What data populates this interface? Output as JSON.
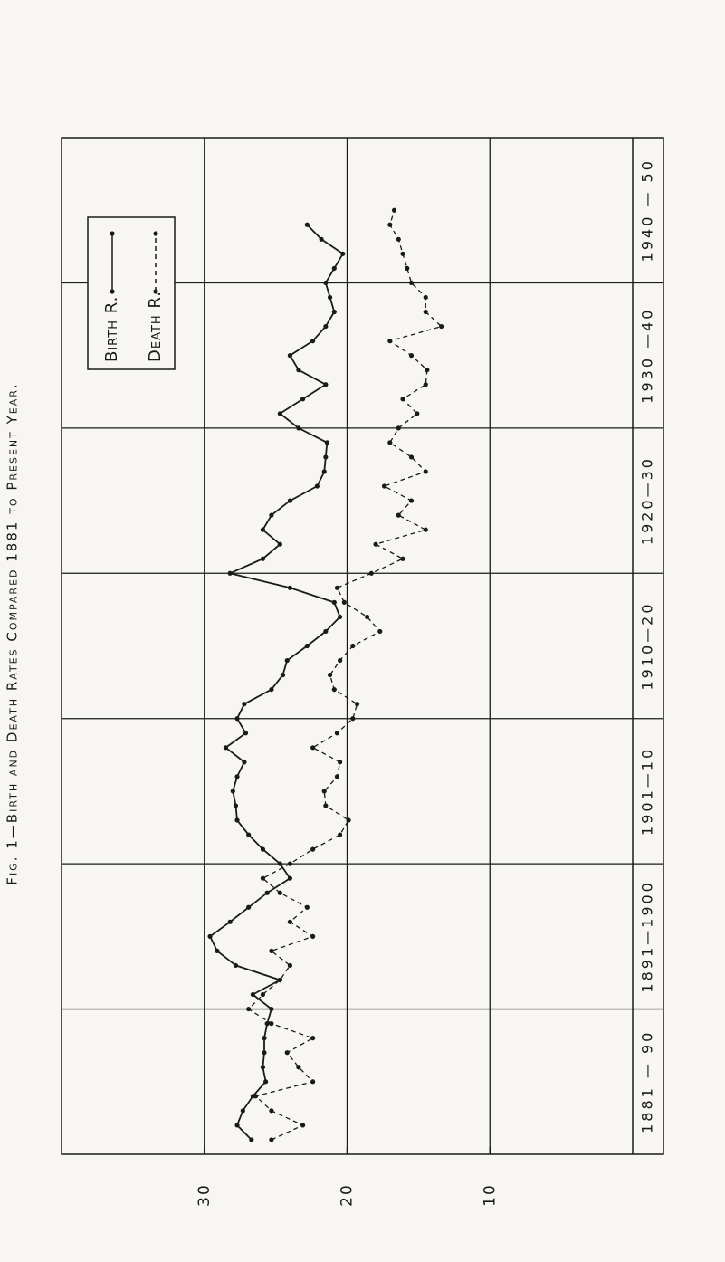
{
  "chart_data": {
    "type": "line",
    "title": "Fig. 1—Birth and Death Rates Compared 1881 to Present Year.",
    "x": [
      1881,
      1882,
      1883,
      1884,
      1885,
      1886,
      1887,
      1888,
      1889,
      1890,
      1891,
      1892,
      1893,
      1894,
      1895,
      1896,
      1897,
      1898,
      1899,
      1900,
      1901,
      1902,
      1903,
      1904,
      1905,
      1906,
      1907,
      1908,
      1909,
      1910,
      1911,
      1912,
      1913,
      1914,
      1915,
      1916,
      1917,
      1918,
      1919,
      1920,
      1921,
      1922,
      1923,
      1924,
      1925,
      1926,
      1927,
      1928,
      1929,
      1930,
      1931,
      1932,
      1933,
      1934,
      1935,
      1936,
      1937,
      1938,
      1939,
      1940,
      1941,
      1942,
      1943,
      1944,
      1945
    ],
    "series": [
      {
        "name": "Birth R.",
        "color": "#1a1a1a",
        "dashed": false,
        "values": [
          26.7,
          27.7,
          27.3,
          26.6,
          25.7,
          25.9,
          25.8,
          25.8,
          25.6,
          25.3,
          26.6,
          24.7,
          27.8,
          29.1,
          29.6,
          28.2,
          26.9,
          25.6,
          24.0,
          24.7,
          25.9,
          26.9,
          27.7,
          27.8,
          28.0,
          27.7,
          27.2,
          28.5,
          27.1,
          27.7,
          27.2,
          25.3,
          24.5,
          24.2,
          22.8,
          21.5,
          20.5,
          20.9,
          24.0,
          28.2,
          25.9,
          24.7,
          25.9,
          25.3,
          24.0,
          22.1,
          21.6,
          21.5,
          21.4,
          23.4,
          24.7,
          23.1,
          21.5,
          23.4,
          24.0,
          22.4,
          21.5,
          20.9,
          21.2,
          21.5,
          20.9,
          20.3,
          21.8,
          22.8,
          null
        ]
      },
      {
        "name": "Death R.",
        "color": "#1a1a1a",
        "dashed": true,
        "values": [
          25.3,
          23.1,
          25.3,
          26.4,
          22.4,
          23.4,
          24.2,
          22.4,
          25.3,
          26.9,
          25.9,
          24.7,
          24.0,
          25.3,
          22.4,
          24.0,
          22.8,
          24.7,
          25.9,
          24.0,
          22.4,
          20.5,
          19.9,
          21.5,
          21.6,
          20.7,
          20.5,
          22.4,
          20.7,
          19.6,
          19.3,
          20.9,
          21.2,
          20.5,
          19.6,
          17.7,
          18.6,
          20.2,
          20.7,
          18.3,
          16.1,
          18.0,
          14.5,
          16.4,
          15.5,
          17.4,
          14.5,
          15.5,
          17.0,
          16.4,
          15.1,
          16.1,
          14.5,
          14.4,
          15.5,
          17.0,
          13.4,
          14.5,
          14.5,
          15.5,
          15.8,
          16.1,
          16.4,
          17.0,
          16.7
        ]
      }
    ],
    "xlim": [
      1880,
      1950
    ],
    "ylim": [
      0,
      40
    ],
    "yticks": [
      30,
      20,
      10
    ],
    "grid": true,
    "legend": "upper-left",
    "bands": [
      {
        "from": 1880,
        "to": 1890,
        "label": "1881 — 90"
      },
      {
        "from": 1890,
        "to": 1900,
        "label": "1891—1900"
      },
      {
        "from": 1900,
        "to": 1910,
        "label": "1901—10"
      },
      {
        "from": 1910,
        "to": 1920,
        "label": "1910—20"
      },
      {
        "from": 1920,
        "to": 1930,
        "label": "1920—30"
      },
      {
        "from": 1930,
        "to": 1940,
        "label": "1930 —40"
      },
      {
        "from": 1940,
        "to": 1950,
        "label": "1940 — 50"
      }
    ]
  }
}
